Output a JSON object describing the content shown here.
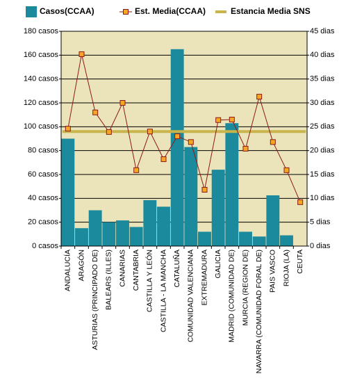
{
  "chart_data": {
    "type": "bar",
    "categories": [
      "ANDALUCÍA",
      "ARAGÓN",
      "ASTURIAS (PRINCIPADO DE)",
      "BALEARS (ILLES)",
      "CANARIAS",
      "CANTABRIA",
      "CASTILLA Y LEÓN",
      "CASTILLA - LA MANCHA",
      "CATALUÑA",
      "COMUNIDAD VALENCIANA",
      "EXTREMADURA",
      "GALICIA",
      "MADRID (COMUNIDAD DE)",
      "MURCIA (REGION DE)",
      "NAVARRA (COMUNIDAD FORAL DE)",
      "PAIS VASCO",
      "RIOJA (LA)",
      "CEUTA"
    ],
    "series": [
      {
        "name": "Casos(CCAA)",
        "type": "bar",
        "color": "#1a8a9c",
        "values": [
          90,
          15,
          30,
          20,
          21.5,
          16,
          38.5,
          33,
          165,
          83,
          12,
          64,
          103,
          12,
          8,
          42.5,
          9,
          0
        ]
      },
      {
        "name": "Est. Media(CCAA)",
        "type": "line",
        "axis": "y2",
        "color": "#8b1a1a",
        "marker_color": "#f5a623",
        "values": [
          24.6,
          40.2,
          28,
          23.9,
          30,
          15.9,
          24,
          18.2,
          23,
          21.8,
          11.8,
          26.4,
          26.5,
          20.4,
          31.3,
          21.8,
          15.9,
          9.2
        ]
      },
      {
        "name": "Estancia Media SNS",
        "type": "hline",
        "axis": "y2",
        "color": "#c8b44a",
        "value": 24
      }
    ],
    "ylim": [
      0,
      180
    ],
    "yticks": [
      {
        "value": 0,
        "label": "0 casos"
      },
      {
        "value": 20,
        "label": "20 casos"
      },
      {
        "value": 40,
        "label": "40 casos"
      },
      {
        "value": 60,
        "label": "60 casos"
      },
      {
        "value": 80,
        "label": "80 casos"
      },
      {
        "value": 100,
        "label": "100 casos"
      },
      {
        "value": 120,
        "label": "120 casos"
      },
      {
        "value": 140,
        "label": "140 casos"
      },
      {
        "value": 160,
        "label": "160 casos"
      },
      {
        "value": 180,
        "label": "180 casos"
      }
    ],
    "y2lim": [
      0,
      45
    ],
    "y2ticks": [
      {
        "value": 0,
        "label": "0 dias"
      },
      {
        "value": 5,
        "label": "5 dias"
      },
      {
        "value": 10,
        "label": "10 dias"
      },
      {
        "value": 15,
        "label": "15 dias"
      },
      {
        "value": 20,
        "label": "20 dias"
      },
      {
        "value": 25,
        "label": "25 dias"
      },
      {
        "value": 30,
        "label": "30 dias"
      },
      {
        "value": 35,
        "label": "35 dias"
      },
      {
        "value": 40,
        "label": "40 dias"
      },
      {
        "value": 45,
        "label": "45 dias"
      }
    ],
    "grid": true,
    "plot_background": "#ebe3b9",
    "legend": "top"
  }
}
